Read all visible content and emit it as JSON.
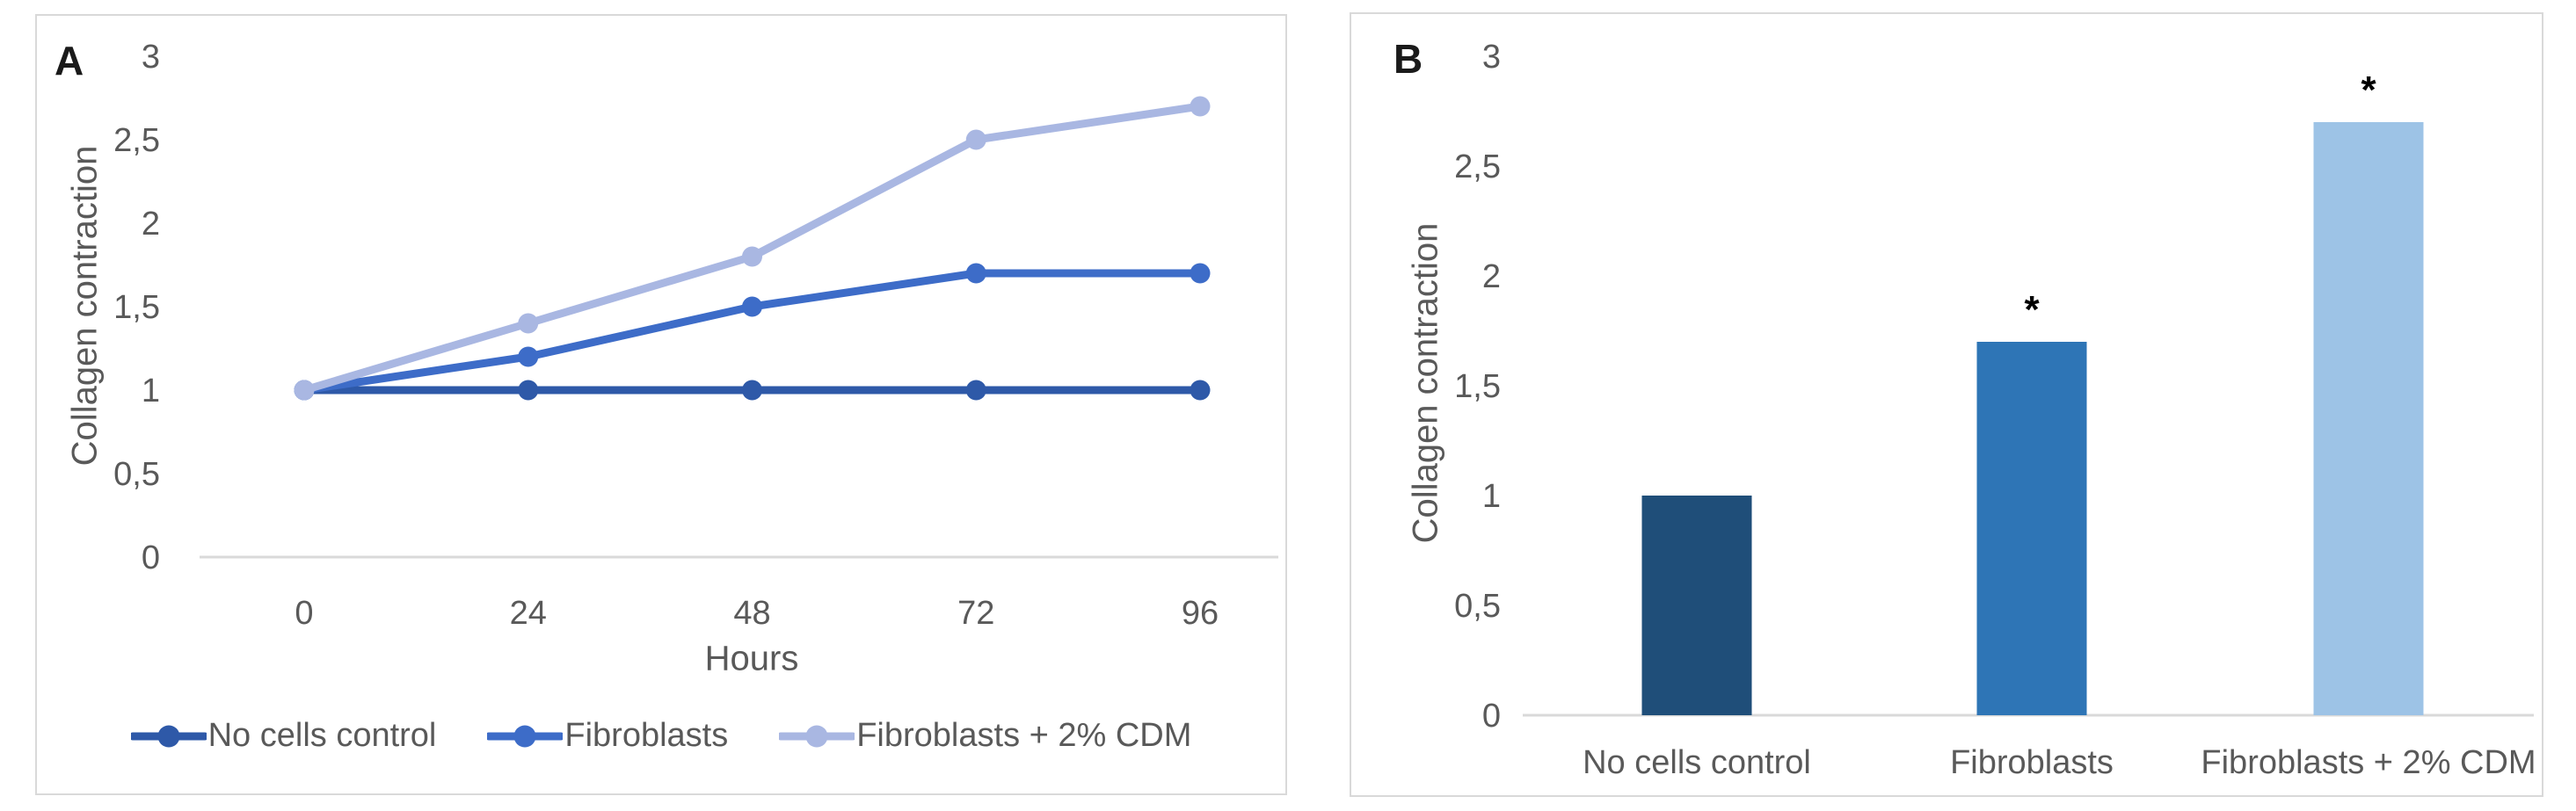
{
  "figure": {
    "panels": [
      {
        "label": "A",
        "y_axis_title": "Collagen contraction",
        "x_axis_title": "Hours"
      },
      {
        "label": "B",
        "y_axis_title": "Collagen contraction",
        "x_axis_title": ""
      }
    ]
  },
  "colors": {
    "tick_text": "#595959",
    "axis_line": "#D9D9D9",
    "panel_border": "#D9D9D9",
    "panel_label": "#1A1A1A",
    "annotation": "#000000"
  },
  "chart_data": [
    {
      "type": "line",
      "panel": "A",
      "x": [
        0,
        24,
        48,
        72,
        96
      ],
      "x_tick_labels": [
        "0",
        "24",
        "48",
        "72",
        "96"
      ],
      "xlabel": "Hours",
      "ylabel": "Collagen contraction",
      "ylim": [
        0,
        3
      ],
      "y_ticks": [
        0,
        0.5,
        1,
        1.5,
        2,
        2.5,
        3
      ],
      "y_tick_labels": [
        "0",
        "0,5",
        "1",
        "1,5",
        "2",
        "2,5",
        "3"
      ],
      "grid": false,
      "legend_position": "bottom",
      "series": [
        {
          "name": "No cells control",
          "color": "#2E59A8",
          "values": [
            1,
            1,
            1,
            1,
            1
          ]
        },
        {
          "name": "Fibroblasts",
          "color": "#3D6CC8",
          "values": [
            1,
            1.2,
            1.5,
            1.7,
            1.7
          ]
        },
        {
          "name": "Fibroblasts + 2% CDM",
          "color": "#A9B7E2",
          "values": [
            1,
            1.4,
            1.8,
            2.5,
            2.7
          ]
        }
      ]
    },
    {
      "type": "bar",
      "panel": "B",
      "categories": [
        "No cells control",
        "Fibroblasts",
        "Fibroblasts + 2% CDM"
      ],
      "values": [
        1,
        1.7,
        2.7
      ],
      "bar_colors": [
        "#1F4E79",
        "#2E75B6",
        "#9DC3E6"
      ],
      "annotations": [
        "",
        "*",
        "*"
      ],
      "ylabel": "Collagen contraction",
      "ylim": [
        0,
        3
      ],
      "y_ticks": [
        0,
        0.5,
        1,
        1.5,
        2,
        2.5,
        3
      ],
      "y_tick_labels": [
        "0",
        "0,5",
        "1",
        "1,5",
        "2",
        "2,5",
        "3"
      ],
      "grid": false
    }
  ]
}
